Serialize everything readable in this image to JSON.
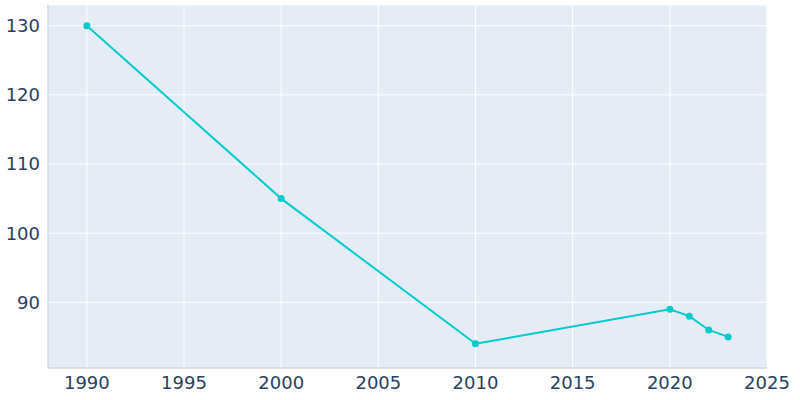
{
  "chart_data": {
    "type": "line",
    "x": [
      1990,
      2000,
      2010,
      2020,
      2021,
      2022,
      2023
    ],
    "values": [
      130,
      105,
      84,
      89,
      88,
      86,
      85
    ],
    "color": "#00cccc",
    "marker": "circle",
    "xlim": [
      1988,
      2025
    ],
    "xticks": [
      1990,
      1995,
      2000,
      2005,
      2010,
      2015,
      2020,
      2025
    ],
    "ylim": [
      80.5,
      133
    ],
    "yticks": [
      90,
      100,
      110,
      120,
      130
    ],
    "grid": true
  }
}
